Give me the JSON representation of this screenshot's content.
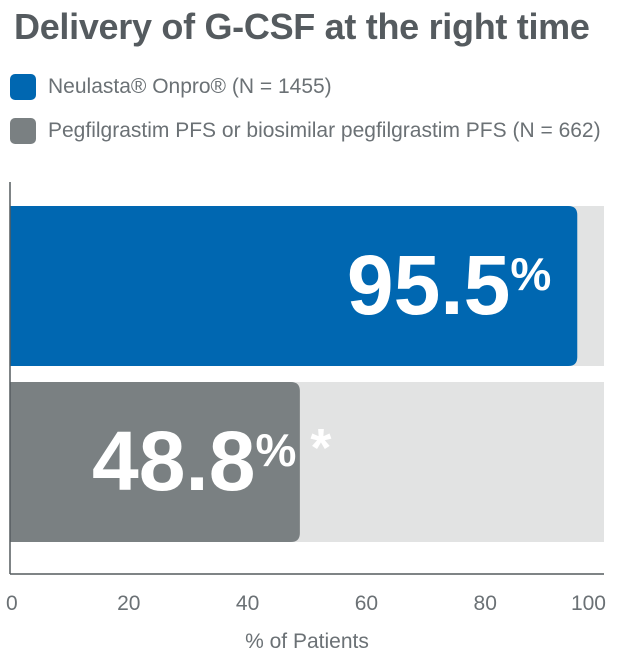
{
  "chart_data": {
    "type": "bar",
    "orientation": "horizontal",
    "title": "Delivery of G-CSF at the right time",
    "xlabel": "% of Patients",
    "xlim": [
      0,
      100
    ],
    "x_ticks": [
      "0",
      "20",
      "40",
      "60",
      "80",
      "100"
    ],
    "series": [
      {
        "name": "Neulasta® Onpro® (N = 1455)",
        "value": 95.5,
        "label_number": "95.5",
        "label_suffix": "%",
        "color": "#0067b1"
      },
      {
        "name": "Pegfilgrastim PFS or biosimilar pegfilgrastim PFS (N = 662)",
        "value": 48.8,
        "label_number": "48.8",
        "label_suffix": "%",
        "label_marker": "*",
        "color": "#7a8082"
      }
    ],
    "track_color": "#e2e3e3",
    "legend_position": "top-left",
    "grid": false
  }
}
